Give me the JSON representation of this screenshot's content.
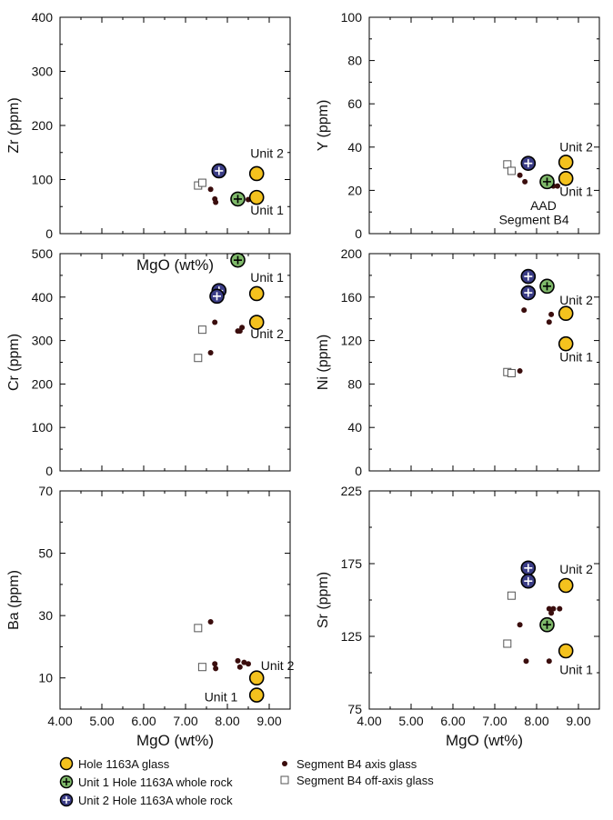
{
  "colors": {
    "glass_fill": "#f4c21e",
    "unit1_fill": "#7fb96a",
    "unit2_fill": "#3b3d86",
    "axis_dot": "#3a0d0d",
    "offaxis_stroke": "#555555",
    "frame": "#000000"
  },
  "chart_data": [
    {
      "type": "scatter",
      "id": "zr",
      "xlabel": "MgO (wt%)",
      "ylabel": "Zr (ppm)",
      "xlim": [
        4.0,
        9.5
      ],
      "ylim": [
        0,
        400
      ],
      "yticks": [
        0,
        100,
        200,
        300,
        400
      ],
      "xticks": [
        4.0,
        5.0,
        6.0,
        7.0,
        8.0,
        9.0
      ],
      "xticklabels": [],
      "series": [
        {
          "kind": "axis",
          "points": [
            [
              7.6,
              82
            ],
            [
              7.7,
              64
            ],
            [
              7.72,
              58
            ],
            [
              8.5,
              63
            ]
          ]
        },
        {
          "kind": "offaxis",
          "points": [
            [
              7.3,
              89
            ],
            [
              7.4,
              94
            ]
          ]
        },
        {
          "kind": "glass",
          "points": [
            [
              8.7,
              111
            ],
            [
              8.7,
              67
            ]
          ]
        },
        {
          "kind": "unit1",
          "points": [
            [
              8.25,
              64
            ]
          ]
        },
        {
          "kind": "unit2",
          "points": [
            [
              7.8,
              116
            ]
          ]
        }
      ],
      "annotations": [
        {
          "text": "Unit 2",
          "x": 8.55,
          "y": 140
        },
        {
          "text": "Unit 1",
          "x": 8.55,
          "y": 35
        }
      ]
    },
    {
      "type": "scatter",
      "id": "y",
      "xlabel": "",
      "ylabel": "Y (ppm)",
      "xlim": [
        4.0,
        9.5
      ],
      "ylim": [
        0,
        100
      ],
      "yticks": [
        0,
        20,
        40,
        60,
        80,
        100
      ],
      "xticks": [
        4.0,
        5.0,
        6.0,
        7.0,
        8.0,
        9.0
      ],
      "xticklabels": [],
      "series": [
        {
          "kind": "axis",
          "points": [
            [
              7.6,
              27
            ],
            [
              7.72,
              24
            ],
            [
              8.4,
              22
            ],
            [
              8.5,
              22
            ]
          ]
        },
        {
          "kind": "offaxis",
          "points": [
            [
              7.3,
              32
            ],
            [
              7.4,
              29
            ]
          ]
        },
        {
          "kind": "glass",
          "points": [
            [
              8.7,
              33
            ],
            [
              8.7,
              25.5
            ]
          ]
        },
        {
          "kind": "unit1",
          "points": [
            [
              8.25,
              24
            ]
          ]
        },
        {
          "kind": "unit2",
          "points": [
            [
              7.8,
              32.5
            ]
          ]
        }
      ],
      "annotations": [
        {
          "text": "Unit 2",
          "x": 8.55,
          "y": 38
        },
        {
          "text": "Unit 1",
          "x": 8.55,
          "y": 17.5
        },
        {
          "text": "AAD",
          "x": 7.85,
          "y": 11
        },
        {
          "text": "Segment B4",
          "x": 7.1,
          "y": 4.5
        }
      ]
    },
    {
      "type": "scatter",
      "id": "cr",
      "xlabel": "",
      "ylabel": "Cr (ppm)",
      "xlim": [
        4.0,
        9.5
      ],
      "ylim": [
        0,
        500
      ],
      "yticks": [
        0,
        100,
        200,
        300,
        400,
        500
      ],
      "xticks": [
        4.0,
        5.0,
        6.0,
        7.0,
        8.0,
        9.0
      ],
      "xticklabels": [],
      "series": [
        {
          "kind": "axis",
          "points": [
            [
              7.7,
              342
            ],
            [
              7.6,
              272
            ],
            [
              8.25,
              322
            ],
            [
              8.3,
              322
            ],
            [
              8.35,
              330
            ]
          ]
        },
        {
          "kind": "offaxis",
          "points": [
            [
              7.4,
              325
            ],
            [
              7.3,
              260
            ]
          ]
        },
        {
          "kind": "glass",
          "points": [
            [
              8.7,
              408
            ],
            [
              8.7,
              342
            ]
          ]
        },
        {
          "kind": "unit1",
          "points": [
            [
              8.25,
              485
            ]
          ]
        },
        {
          "kind": "unit2",
          "points": [
            [
              7.8,
              415
            ],
            [
              7.75,
              402
            ]
          ]
        }
      ],
      "annotations": [
        {
          "text": "Unit 1",
          "x": 8.55,
          "y": 435
        },
        {
          "text": "Unit 2",
          "x": 8.55,
          "y": 305
        }
      ]
    },
    {
      "type": "scatter",
      "id": "ni",
      "xlabel": "",
      "ylabel": "Ni (ppm)",
      "xlim": [
        4.0,
        9.5
      ],
      "ylim": [
        0,
        200
      ],
      "yticks": [
        0,
        40,
        80,
        120,
        160,
        200
      ],
      "xticks": [
        4.0,
        5.0,
        6.0,
        7.0,
        8.0,
        9.0
      ],
      "xticklabels": [],
      "series": [
        {
          "kind": "axis",
          "points": [
            [
              7.7,
              148
            ],
            [
              8.35,
              144
            ],
            [
              8.3,
              137
            ],
            [
              7.6,
              92
            ]
          ]
        },
        {
          "kind": "offaxis",
          "points": [
            [
              7.3,
              91
            ],
            [
              7.4,
              90
            ]
          ]
        },
        {
          "kind": "glass",
          "points": [
            [
              8.7,
              145
            ],
            [
              8.7,
              117
            ]
          ]
        },
        {
          "kind": "unit1",
          "points": [
            [
              8.25,
              170
            ]
          ]
        },
        {
          "kind": "unit2",
          "points": [
            [
              7.8,
              179
            ],
            [
              7.8,
              164
            ]
          ]
        }
      ],
      "annotations": [
        {
          "text": "Unit 2",
          "x": 8.55,
          "y": 153
        },
        {
          "text": "Unit 1",
          "x": 8.55,
          "y": 101
        }
      ]
    },
    {
      "type": "scatter",
      "id": "ba",
      "xlabel": "MgO (wt%)",
      "ylabel": "Ba (ppm)",
      "xlim": [
        4.0,
        9.5
      ],
      "ylim": [
        0,
        70
      ],
      "yticks": [
        10,
        30,
        50,
        70
      ],
      "xticks": [
        4.0,
        5.0,
        6.0,
        7.0,
        8.0,
        9.0
      ],
      "xticklabels": [
        "4.00",
        "5.00",
        "6.00",
        "7.00",
        "8.00",
        "9.00"
      ],
      "series": [
        {
          "kind": "axis",
          "points": [
            [
              7.6,
              28
            ],
            [
              7.7,
              14.5
            ],
            [
              7.72,
              13
            ],
            [
              8.25,
              15.5
            ],
            [
              8.3,
              13.5
            ],
            [
              8.4,
              15
            ],
            [
              8.5,
              14.5
            ]
          ]
        },
        {
          "kind": "offaxis",
          "points": [
            [
              7.3,
              26
            ],
            [
              7.4,
              13.5
            ]
          ]
        },
        {
          "kind": "glass",
          "points": [
            [
              8.7,
              10
            ],
            [
              8.7,
              4.5
            ]
          ]
        },
        {
          "kind": "unit1",
          "points": []
        },
        {
          "kind": "unit2",
          "points": []
        }
      ],
      "annotations": [
        {
          "text": "Unit 2",
          "x": 8.8,
          "y": 12.5
        },
        {
          "text": "Unit 1",
          "x": 7.45,
          "y": 2.5
        }
      ]
    },
    {
      "type": "scatter",
      "id": "sr",
      "xlabel": "MgO (wt%)",
      "ylabel": "Sr (ppm)",
      "xlim": [
        4.0,
        9.5
      ],
      "ylim": [
        75,
        225
      ],
      "yticks": [
        75,
        125,
        175,
        225
      ],
      "xticks": [
        4.0,
        5.0,
        6.0,
        7.0,
        8.0,
        9.0
      ],
      "xticklabels": [
        "4.00",
        "5.00",
        "6.00",
        "7.00",
        "8.00",
        "9.00"
      ],
      "series": [
        {
          "kind": "axis",
          "points": [
            [
              8.3,
              144
            ],
            [
              8.4,
              144
            ],
            [
              8.55,
              144
            ],
            [
              8.35,
              141
            ],
            [
              7.6,
              133
            ],
            [
              7.75,
              108
            ],
            [
              8.3,
              108
            ]
          ]
        },
        {
          "kind": "offaxis",
          "points": [
            [
              7.4,
              153
            ],
            [
              7.3,
              120
            ]
          ]
        },
        {
          "kind": "glass",
          "points": [
            [
              8.7,
              160
            ],
            [
              8.7,
              115
            ]
          ]
        },
        {
          "kind": "unit1",
          "points": [
            [
              8.25,
              133
            ]
          ]
        },
        {
          "kind": "unit2",
          "points": [
            [
              7.8,
              172
            ],
            [
              7.8,
              163
            ]
          ]
        }
      ],
      "annotations": [
        {
          "text": "Unit 2",
          "x": 8.55,
          "y": 168
        },
        {
          "text": "Unit 1",
          "x": 8.55,
          "y": 99
        }
      ]
    }
  ],
  "legend": [
    {
      "kind": "glass",
      "label": "Hole 1163A glass"
    },
    {
      "kind": "unit1",
      "label": "Unit 1 Hole 1163A whole rock"
    },
    {
      "kind": "unit2",
      "label": "Unit 2 Hole 1163A whole rock"
    },
    {
      "kind": "axis",
      "label": "Segment B4 axis glass"
    },
    {
      "kind": "offaxis",
      "label": "Segment B4 off-axis glass"
    }
  ]
}
